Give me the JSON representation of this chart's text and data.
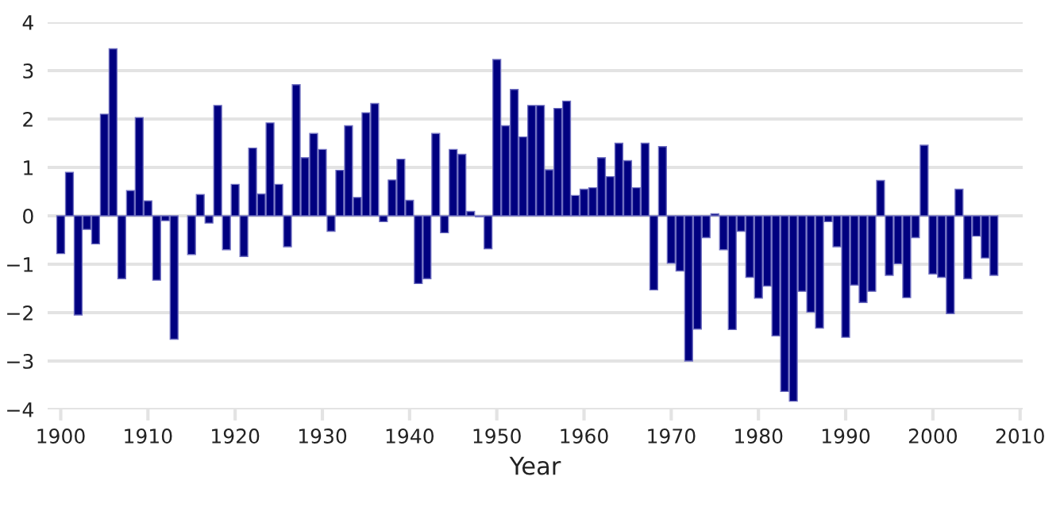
{
  "chart_data": {
    "type": "bar",
    "xlabel": "Year",
    "color": "#000080",
    "x": [
      1900,
      1901,
      1902,
      1903,
      1904,
      1905,
      1906,
      1907,
      1908,
      1909,
      1910,
      1911,
      1912,
      1913,
      1914,
      1915,
      1916,
      1917,
      1918,
      1919,
      1920,
      1921,
      1922,
      1923,
      1924,
      1925,
      1926,
      1927,
      1928,
      1929,
      1930,
      1931,
      1932,
      1933,
      1934,
      1935,
      1936,
      1937,
      1938,
      1939,
      1940,
      1941,
      1942,
      1943,
      1944,
      1945,
      1946,
      1947,
      1948,
      1949,
      1950,
      1951,
      1952,
      1953,
      1954,
      1955,
      1956,
      1957,
      1958,
      1959,
      1960,
      1961,
      1962,
      1963,
      1964,
      1965,
      1966,
      1967,
      1968,
      1969,
      1970,
      1971,
      1972,
      1973,
      1974,
      1975,
      1976,
      1977,
      1978,
      1979,
      1980,
      1981,
      1982,
      1983,
      1984,
      1985,
      1986,
      1987,
      1988,
      1989,
      1990,
      1991,
      1992,
      1993,
      1994,
      1995,
      1996,
      1997,
      1998,
      1999,
      2000,
      2001,
      2002,
      2003,
      2004,
      2005,
      2006,
      2007
    ],
    "values": [
      -0.78,
      0.9,
      -2.05,
      -0.28,
      -0.58,
      2.1,
      3.45,
      -1.3,
      0.52,
      2.03,
      0.31,
      -1.33,
      -0.1,
      -2.55,
      null,
      -0.8,
      0.44,
      -0.15,
      2.28,
      -0.7,
      0.65,
      -0.84,
      1.4,
      0.45,
      1.92,
      0.65,
      -0.64,
      2.71,
      1.2,
      1.7,
      1.37,
      -0.32,
      0.94,
      1.86,
      0.38,
      2.13,
      2.32,
      -0.12,
      0.74,
      1.17,
      0.32,
      -1.4,
      -1.3,
      1.7,
      -0.35,
      1.37,
      1.27,
      0.09,
      -0.02,
      -0.68,
      3.23,
      1.86,
      2.61,
      1.63,
      2.28,
      2.28,
      0.95,
      2.22,
      2.37,
      0.42,
      0.55,
      0.58,
      1.2,
      0.81,
      1.5,
      1.14,
      0.58,
      1.5,
      -1.53,
      1.43,
      -0.98,
      -1.14,
      -3.0,
      -2.34,
      -0.45,
      0.04,
      -0.7,
      -2.35,
      -0.32,
      -1.27,
      -1.7,
      -1.45,
      -2.48,
      -3.63,
      -3.83,
      -1.56,
      -1.99,
      -2.32,
      -0.12,
      -0.64,
      -2.51,
      -1.43,
      -1.79,
      -1.56,
      0.73,
      -1.23,
      -0.99,
      -1.69,
      -0.45,
      1.46,
      -1.2,
      -1.27,
      -2.02,
      0.55,
      -1.3,
      -0.42,
      -0.87,
      -1.23
    ],
    "xlim": [
      1898.5,
      2010.3
    ],
    "xticks": [
      1900,
      1910,
      1920,
      1930,
      1940,
      1950,
      1960,
      1970,
      1980,
      1990,
      2000,
      2010
    ],
    "ylim": [
      -4,
      4
    ],
    "yticks": [
      -4,
      -3,
      -2,
      -1,
      0,
      1,
      2,
      3,
      4
    ],
    "grid": "y"
  }
}
